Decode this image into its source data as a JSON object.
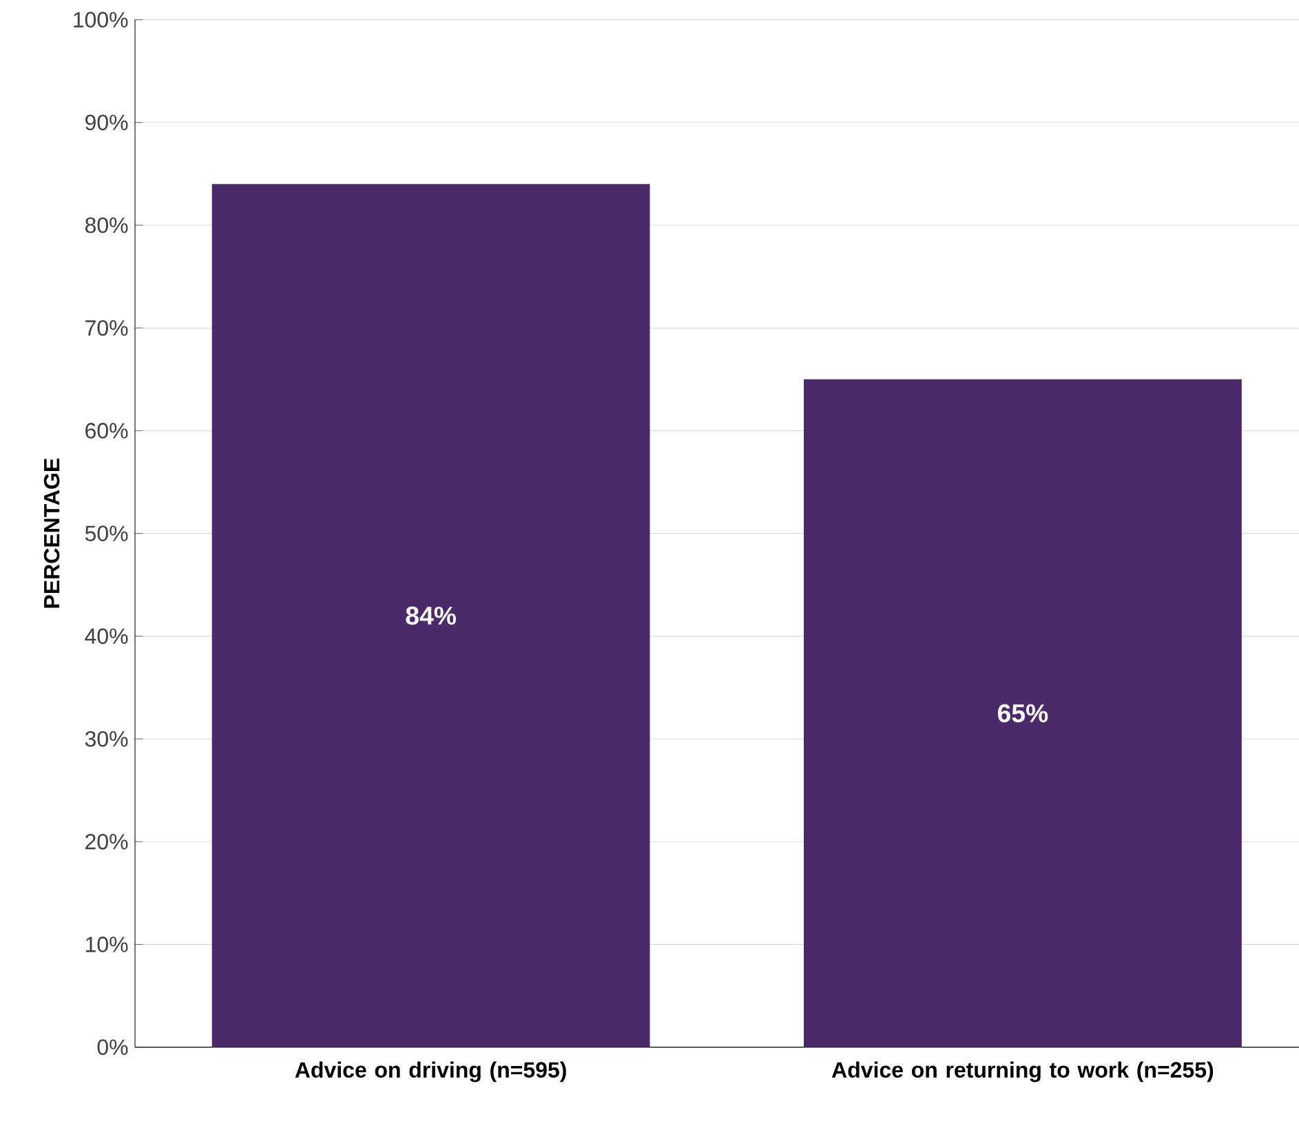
{
  "chart_data": {
    "type": "bar",
    "ylabel": "PERCENTAGE",
    "categories": [
      "Advice on driving (n=595)",
      "Advice on returning to work (n=255)"
    ],
    "values": [
      84,
      65
    ],
    "value_labels": [
      "84%",
      "65%"
    ],
    "color": "#4b2a69",
    "ylim": [
      0,
      100
    ],
    "yticks": [
      {
        "value": 0,
        "label": "0%"
      },
      {
        "value": 10,
        "label": "10%"
      },
      {
        "value": 20,
        "label": "20%"
      },
      {
        "value": 30,
        "label": "30%"
      },
      {
        "value": 40,
        "label": "40%"
      },
      {
        "value": 50,
        "label": "50%"
      },
      {
        "value": 60,
        "label": "60%"
      },
      {
        "value": 70,
        "label": "70%"
      },
      {
        "value": 80,
        "label": "80%"
      },
      {
        "value": 90,
        "label": "90%"
      },
      {
        "value": 100,
        "label": "100%"
      }
    ],
    "grid": "y"
  }
}
